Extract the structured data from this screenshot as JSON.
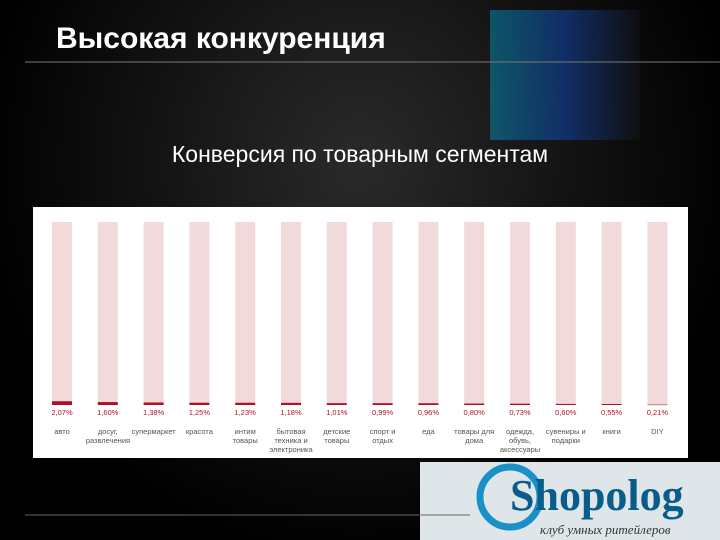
{
  "header": {
    "title": "Высокая конкуренция"
  },
  "chart_data": {
    "type": "bar",
    "title": "Конверсия по товарным сегментам",
    "categories": [
      "авто",
      "досуг, развлечения",
      "супермаркет",
      "красота",
      "интим товары",
      "бытовая техника и электроника",
      "детские товары",
      "спорт и отдых",
      "еда",
      "товары для дома",
      "одежда, обувь, аксессуары",
      "сувениры и подарки",
      "книги",
      "DIY"
    ],
    "values": [
      2.07,
      1.6,
      1.38,
      1.25,
      1.23,
      1.18,
      1.01,
      0.99,
      0.96,
      0.8,
      0.73,
      0.6,
      0.55,
      0.21
    ],
    "value_labels": [
      "2,07%",
      "1,60%",
      "1,38%",
      "1,25%",
      "1,23%",
      "1,18%",
      "1,01%",
      "0,99%",
      "0,96%",
      "0,80%",
      "0,73%",
      "0,60%",
      "0,55%",
      "0,21%"
    ],
    "color": "#b0102a",
    "track_color": "#f2dada",
    "ylim": [
      0,
      100
    ]
  },
  "logo": {
    "name": "Shopolog",
    "tagline": "клуб умных ритейлеров"
  }
}
